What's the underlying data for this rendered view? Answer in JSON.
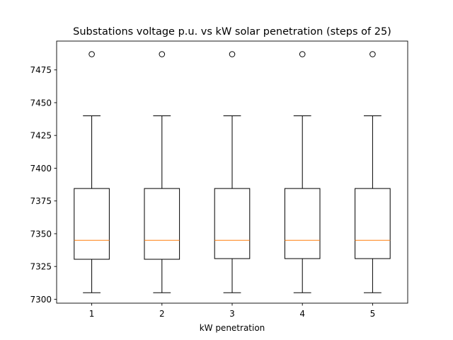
{
  "chart_data": {
    "type": "boxplot",
    "title": "Substations voltage p.u. vs kW solar penetration (steps of 25)",
    "xlabel": "kW penetration",
    "ylabel": "",
    "ylim": [
      7297,
      7497
    ],
    "yticks": [
      7300,
      7325,
      7350,
      7375,
      7400,
      7425,
      7450,
      7475
    ],
    "categories": [
      "1",
      "2",
      "3",
      "4",
      "5"
    ],
    "boxes": [
      {
        "category": "1",
        "whisker_low": 7305,
        "q1": 7330.5,
        "median": 7345,
        "q3": 7384.5,
        "whisker_high": 7440,
        "outliers": [
          7487
        ]
      },
      {
        "category": "2",
        "whisker_low": 7305,
        "q1": 7330.5,
        "median": 7345,
        "q3": 7384.5,
        "whisker_high": 7440,
        "outliers": [
          7487
        ]
      },
      {
        "category": "3",
        "whisker_low": 7305,
        "q1": 7331,
        "median": 7345,
        "q3": 7384.5,
        "whisker_high": 7440,
        "outliers": [
          7487
        ]
      },
      {
        "category": "4",
        "whisker_low": 7305,
        "q1": 7331,
        "median": 7345,
        "q3": 7384.5,
        "whisker_high": 7440,
        "outliers": [
          7487
        ]
      },
      {
        "category": "5",
        "whisker_low": 7305,
        "q1": 7331,
        "median": 7345,
        "q3": 7384.5,
        "whisker_high": 7440,
        "outliers": [
          7487
        ]
      }
    ],
    "colors": {
      "box": "#000000",
      "median": "#ff7f0e",
      "outlier_edge": "#000000"
    },
    "grid": false,
    "legend": "none"
  }
}
